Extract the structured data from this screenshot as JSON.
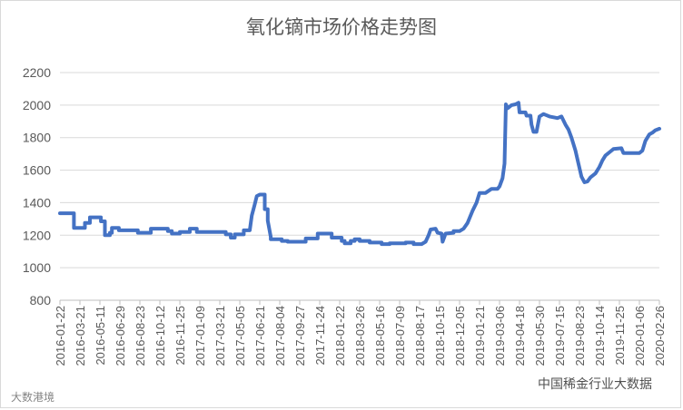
{
  "chart_data": {
    "type": "line",
    "title": "氧化镝市场价格走势图",
    "xlabel": "",
    "ylabel": "",
    "ylim": [
      800,
      2200
    ],
    "yticks": [
      800,
      1000,
      1200,
      1400,
      1600,
      1800,
      2000,
      2200
    ],
    "grid": true,
    "legend": "none",
    "line_color": "#4472c4",
    "xtick_labels": [
      "2016-01-22",
      "2016-03-21",
      "2016-05-11",
      "2016-06-29",
      "2016-08-23",
      "2016-10-12",
      "2016-11-25",
      "2017-01-09",
      "2017-03-21",
      "2017-05-05",
      "2017-06-21",
      "2017-08-04",
      "2017-09-27",
      "2017-11-24",
      "2018-01-22",
      "2018-03-26",
      "2018-05-16",
      "2018-07-09",
      "2018-08-17",
      "2018-10-15",
      "2018-12-05",
      "2019-01-21",
      "2019-03-06",
      "2019-04-18",
      "2019-05-30",
      "2019-07-15",
      "2019-08-23",
      "2019-10-14",
      "2019-11-25",
      "2020-01-06",
      "2020-02-26"
    ],
    "series": [
      {
        "values": [
          [
            0,
            1335
          ],
          [
            0.7,
            1335
          ],
          [
            0.7,
            1245
          ],
          [
            1.25,
            1245
          ],
          [
            1.25,
            1275
          ],
          [
            1.5,
            1275
          ],
          [
            1.5,
            1310
          ],
          [
            2.05,
            1310
          ],
          [
            2.05,
            1285
          ],
          [
            2.25,
            1285
          ],
          [
            2.25,
            1200
          ],
          [
            2.5,
            1200
          ],
          [
            2.5,
            1215
          ],
          [
            2.6,
            1215
          ],
          [
            2.6,
            1245
          ],
          [
            2.95,
            1245
          ],
          [
            2.95,
            1230
          ],
          [
            3.9,
            1230
          ],
          [
            3.9,
            1215
          ],
          [
            4.55,
            1215
          ],
          [
            4.55,
            1240
          ],
          [
            5.4,
            1240
          ],
          [
            5.4,
            1225
          ],
          [
            5.6,
            1225
          ],
          [
            5.6,
            1210
          ],
          [
            6.0,
            1210
          ],
          [
            6.0,
            1220
          ],
          [
            6.5,
            1220
          ],
          [
            6.5,
            1240
          ],
          [
            6.85,
            1240
          ],
          [
            6.85,
            1220
          ],
          [
            8.3,
            1220
          ],
          [
            8.3,
            1205
          ],
          [
            8.55,
            1205
          ],
          [
            8.55,
            1185
          ],
          [
            8.75,
            1185
          ],
          [
            8.75,
            1205
          ],
          [
            9.2,
            1205
          ],
          [
            9.2,
            1230
          ],
          [
            9.5,
            1230
          ],
          [
            9.6,
            1320
          ],
          [
            9.75,
            1390
          ],
          [
            9.85,
            1440
          ],
          [
            10.0,
            1450
          ],
          [
            10.25,
            1450
          ],
          [
            10.25,
            1360
          ],
          [
            10.4,
            1360
          ],
          [
            10.4,
            1290
          ],
          [
            10.55,
            1190
          ],
          [
            10.55,
            1175
          ],
          [
            11.1,
            1175
          ],
          [
            11.1,
            1165
          ],
          [
            11.4,
            1165
          ],
          [
            11.4,
            1160
          ],
          [
            12.3,
            1160
          ],
          [
            12.3,
            1180
          ],
          [
            12.9,
            1180
          ],
          [
            12.9,
            1210
          ],
          [
            13.6,
            1210
          ],
          [
            13.6,
            1185
          ],
          [
            14.1,
            1185
          ],
          [
            14.1,
            1165
          ],
          [
            14.25,
            1165
          ],
          [
            14.25,
            1150
          ],
          [
            14.55,
            1150
          ],
          [
            14.55,
            1165
          ],
          [
            14.75,
            1165
          ],
          [
            14.75,
            1175
          ],
          [
            15.0,
            1175
          ],
          [
            15.0,
            1165
          ],
          [
            15.5,
            1165
          ],
          [
            15.5,
            1155
          ],
          [
            16.1,
            1155
          ],
          [
            16.1,
            1145
          ],
          [
            16.5,
            1145
          ],
          [
            16.5,
            1150
          ],
          [
            17.3,
            1150
          ],
          [
            17.3,
            1155
          ],
          [
            17.7,
            1155
          ],
          [
            17.7,
            1145
          ],
          [
            18.1,
            1145
          ],
          [
            18.3,
            1160
          ],
          [
            18.45,
            1200
          ],
          [
            18.55,
            1235
          ],
          [
            18.8,
            1240
          ],
          [
            18.9,
            1215
          ],
          [
            19.1,
            1210
          ],
          [
            19.15,
            1160
          ],
          [
            19.3,
            1210
          ],
          [
            19.7,
            1215
          ],
          [
            19.7,
            1225
          ],
          [
            20.0,
            1225
          ],
          [
            20.2,
            1240
          ],
          [
            20.4,
            1275
          ],
          [
            20.65,
            1350
          ],
          [
            20.85,
            1400
          ],
          [
            21.0,
            1460
          ],
          [
            21.3,
            1460
          ],
          [
            21.6,
            1485
          ],
          [
            21.9,
            1485
          ],
          [
            22.0,
            1500
          ],
          [
            22.15,
            1550
          ],
          [
            22.25,
            1640
          ],
          [
            22.32,
            2005
          ],
          [
            22.4,
            1980
          ],
          [
            22.6,
            2000
          ],
          [
            22.8,
            2005
          ],
          [
            22.95,
            2015
          ],
          [
            23.0,
            1955
          ],
          [
            23.3,
            1955
          ],
          [
            23.35,
            1935
          ],
          [
            23.55,
            1935
          ],
          [
            23.6,
            1880
          ],
          [
            23.7,
            1835
          ],
          [
            23.85,
            1835
          ],
          [
            24.0,
            1930
          ],
          [
            24.2,
            1945
          ],
          [
            24.5,
            1930
          ],
          [
            24.9,
            1920
          ],
          [
            25.1,
            1930
          ],
          [
            25.3,
            1880
          ],
          [
            25.45,
            1850
          ],
          [
            25.6,
            1800
          ],
          [
            25.8,
            1720
          ],
          [
            25.95,
            1640
          ],
          [
            26.1,
            1560
          ],
          [
            26.25,
            1525
          ],
          [
            26.4,
            1530
          ],
          [
            26.55,
            1555
          ],
          [
            26.8,
            1580
          ],
          [
            27.0,
            1620
          ],
          [
            27.15,
            1660
          ],
          [
            27.3,
            1690
          ],
          [
            27.55,
            1715
          ],
          [
            27.7,
            1730
          ],
          [
            28.1,
            1735
          ],
          [
            28.2,
            1705
          ],
          [
            29.0,
            1705
          ],
          [
            29.15,
            1720
          ],
          [
            29.3,
            1780
          ],
          [
            29.5,
            1820
          ],
          [
            29.65,
            1830
          ],
          [
            29.8,
            1845
          ],
          [
            30.0,
            1855
          ]
        ]
      }
    ]
  },
  "watermark_left": "大数港境",
  "watermark_right": "中国稀金行业大数据"
}
